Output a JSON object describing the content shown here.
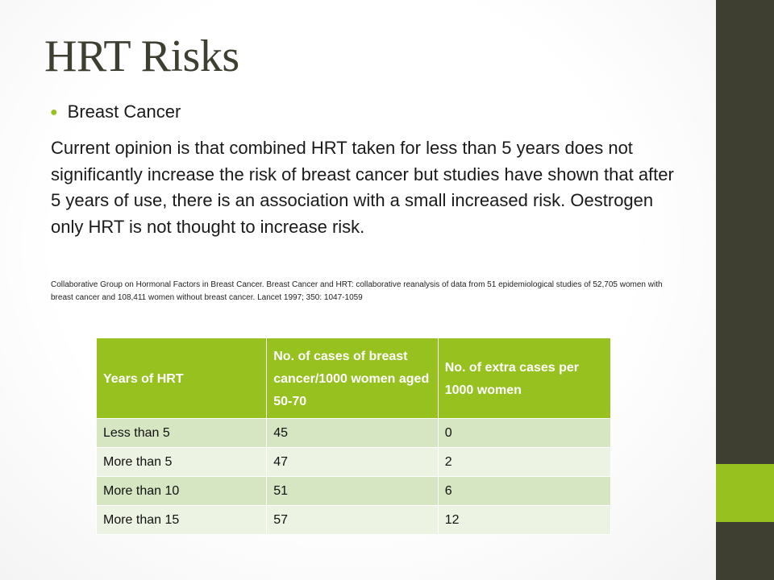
{
  "slide": {
    "title": "HRT Risks",
    "bullet": "Breast Cancer",
    "body": "Current opinion is that combined HRT taken for less than 5 years does not significantly increase the risk of breast cancer but studies have shown that after 5 years of use, there is an association with a small increased risk. Oestrogen only HRT is not thought to increase risk.",
    "citation": "Collaborative Group on Hormonal Factors in Breast Cancer. Breast Cancer and HRT: collaborative reanalysis of data from 51 epidemiological studies of 52,705 women with breast cancer and 108,411 women without breast cancer. Lancet 1997; 350: 1047-1059"
  },
  "table": {
    "headers": [
      "Years of HRT",
      "No. of cases of breast cancer/1000 women aged 50-70",
      "No. of extra cases per 1000 women"
    ],
    "rows": [
      [
        "Less than 5",
        "45",
        "0"
      ],
      [
        "More than 5",
        "47",
        "2"
      ],
      [
        "More than 10",
        "51",
        "6"
      ],
      [
        "More than 15",
        "57",
        "12"
      ]
    ]
  },
  "colors": {
    "accent_green": "#96c11f",
    "dark_olive": "#3f3f31",
    "row_odd": "#d6e6c2",
    "row_even": "#ecf3e2"
  }
}
